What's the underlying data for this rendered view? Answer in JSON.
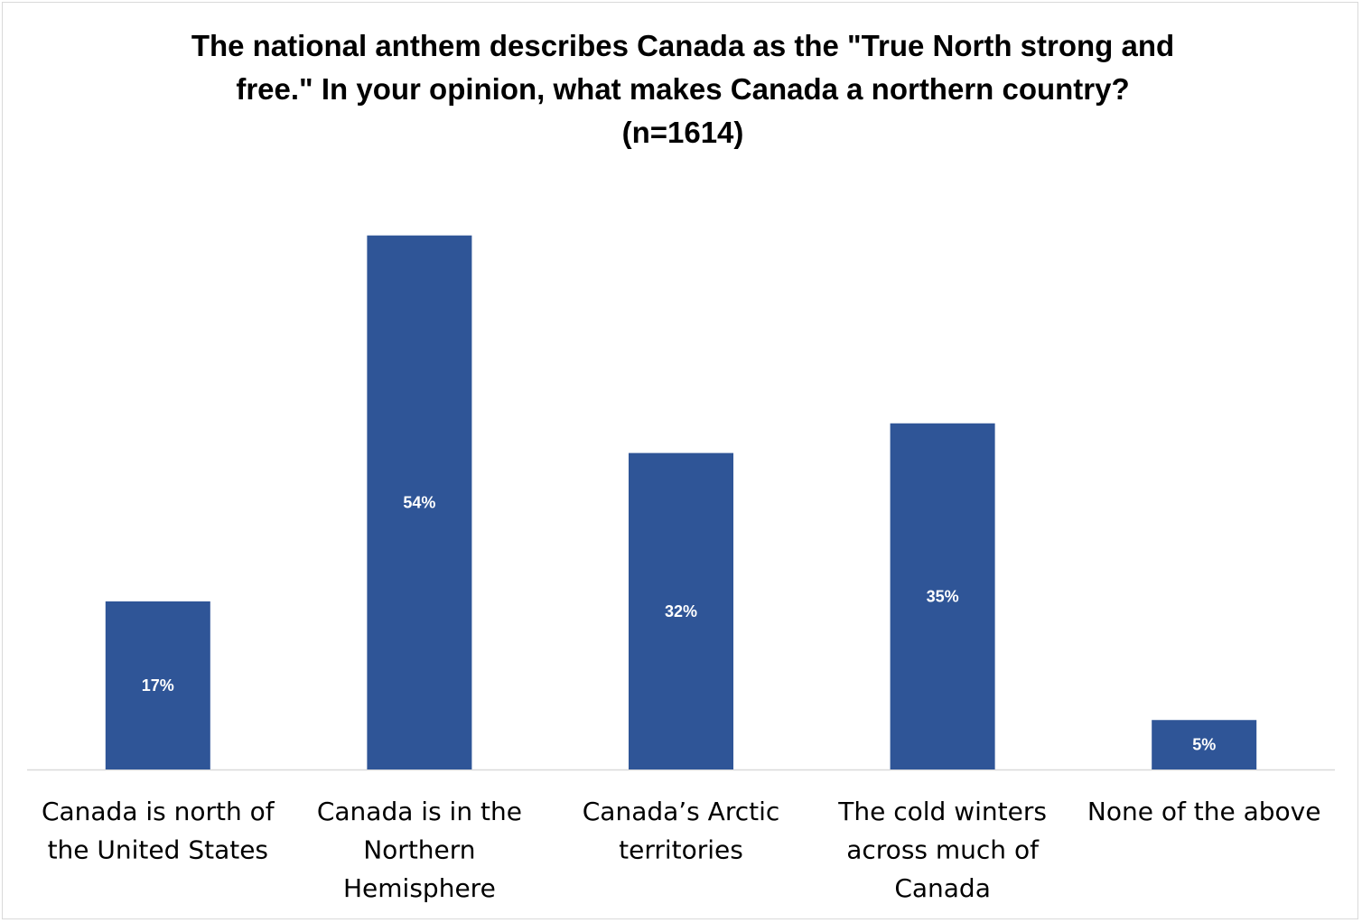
{
  "chart_data": {
    "type": "bar",
    "title_lines": [
      "The national anthem describes Canada as the \"True North strong and",
      "free.\" In your opinion, what makes Canada a northern country?",
      "(n=1614)"
    ],
    "categories": [
      [
        "Canada is north of",
        "the United States"
      ],
      [
        "Canada is in the",
        "Northern",
        "Hemisphere"
      ],
      [
        "Canada’s Arctic",
        "territories"
      ],
      [
        "The cold winters",
        "across much of",
        "Canada"
      ],
      [
        "None of the above"
      ]
    ],
    "values": [
      17,
      54,
      32,
      35,
      5
    ],
    "value_labels": [
      "17%",
      "54%",
      "32%",
      "35%",
      "5%"
    ],
    "xlabel": "",
    "ylabel": "",
    "ylim": [
      0,
      60
    ],
    "grid": false,
    "legend": "none",
    "bar_color": "#2F5597",
    "axis_color": "#d9d9d9"
  }
}
